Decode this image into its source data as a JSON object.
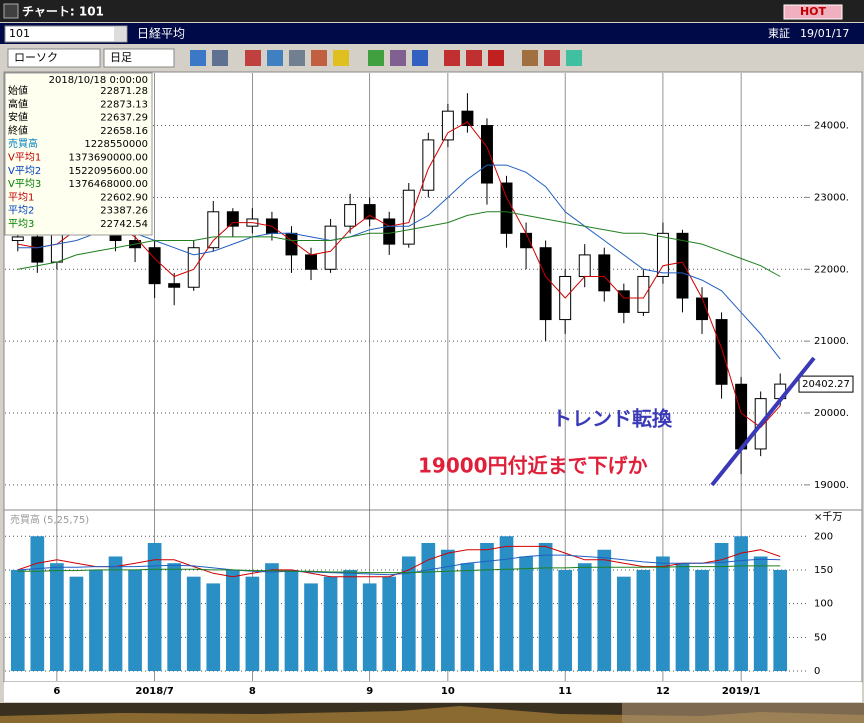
{
  "window": {
    "title": "チャート: 101",
    "hot": "HOT",
    "code": "101",
    "name": "日経平均",
    "market": "東証",
    "date": "19/01/17",
    "chart_type": "ローソク",
    "period": "日足"
  },
  "info": {
    "datetime": "2018/10/18 0:00:00",
    "rows": [
      {
        "label": "始値",
        "value": "22871.28",
        "color": "#000000"
      },
      {
        "label": "高値",
        "value": "22873.13",
        "color": "#000000"
      },
      {
        "label": "安値",
        "value": "22637.29",
        "color": "#000000"
      },
      {
        "label": "終値",
        "value": "22658.16",
        "color": "#000000"
      },
      {
        "label": "売買高",
        "value": "1228550000",
        "color": "#0080c0"
      },
      {
        "label": "V平均1",
        "value": "1373690000.00",
        "color": "#c00000"
      },
      {
        "label": "V平均2",
        "value": "1522095600.00",
        "color": "#0040c0"
      },
      {
        "label": "V平均3",
        "value": "1376468000.00",
        "color": "#008000"
      },
      {
        "label": "平均1",
        "value": "22602.90",
        "color": "#c00000"
      },
      {
        "label": "平均2",
        "value": "23387.26",
        "color": "#0040c0"
      },
      {
        "label": "平均3",
        "value": "22742.54",
        "color": "#008000"
      }
    ]
  },
  "chart_data": {
    "type": "candlestick",
    "categories": [
      null,
      null,
      "6",
      null,
      null,
      null,
      null,
      "2018/7",
      null,
      null,
      null,
      null,
      "8",
      null,
      null,
      null,
      null,
      null,
      "9",
      null,
      null,
      null,
      "10",
      null,
      null,
      null,
      null,
      null,
      "11",
      null,
      null,
      null,
      null,
      "12",
      null,
      null,
      null,
      "2019/1",
      null,
      null
    ],
    "open": [
      22400,
      22450,
      22100,
      22600,
      22750,
      22700,
      22400,
      22300,
      21800,
      21750,
      22300,
      22800,
      22600,
      22700,
      22500,
      22200,
      22000,
      22600,
      22900,
      22700,
      22350,
      23100,
      23800,
      24200,
      24000,
      23200,
      22500,
      22300,
      21300,
      21900,
      22200,
      21700,
      21400,
      21900,
      22500,
      21600,
      21300,
      20400,
      19500,
      20200
    ],
    "high": [
      22600,
      22500,
      22700,
      22900,
      22850,
      22750,
      22550,
      22400,
      21950,
      22400,
      22950,
      22850,
      22850,
      22800,
      22600,
      22300,
      22700,
      23050,
      23000,
      22800,
      23200,
      23900,
      24300,
      24450,
      24100,
      23300,
      22650,
      22400,
      22000,
      22350,
      22300,
      21800,
      22000,
      22650,
      22550,
      21750,
      21400,
      20500,
      20300,
      20550
    ],
    "low": [
      22250,
      21950,
      22000,
      22500,
      22550,
      22250,
      22100,
      21600,
      21500,
      21700,
      22250,
      22450,
      22500,
      22400,
      21950,
      21850,
      21950,
      22500,
      22600,
      22200,
      22300,
      23000,
      23700,
      23900,
      22900,
      22300,
      22000,
      21000,
      21100,
      21750,
      21550,
      21250,
      21350,
      21800,
      21400,
      21100,
      20200,
      19150,
      19400,
      20100
    ],
    "close": [
      22450,
      22100,
      22600,
      22750,
      22700,
      22400,
      22300,
      21800,
      21750,
      22300,
      22800,
      22600,
      22700,
      22500,
      22200,
      22000,
      22600,
      22900,
      22700,
      22350,
      23100,
      23800,
      24200,
      24000,
      23200,
      22500,
      22300,
      21300,
      21900,
      22200,
      21700,
      21400,
      21900,
      22500,
      21600,
      21300,
      20400,
      19500,
      20200,
      20402.27
    ],
    "up_color": "#ffffff",
    "down_color": "#000000",
    "ma": [
      {
        "color": "#d00000",
        "values": [
          22350,
          22300,
          22350,
          22550,
          22650,
          22600,
          22450,
          22150,
          21900,
          22000,
          22400,
          22650,
          22650,
          22600,
          22400,
          22200,
          22250,
          22550,
          22750,
          22600,
          22650,
          23400,
          23900,
          24050,
          23700,
          23000,
          22500,
          21900,
          21600,
          21900,
          21900,
          21600,
          21600,
          22050,
          22100,
          21600,
          20900,
          20000,
          19800,
          20100
        ]
      },
      {
        "color": "#2060c0",
        "values": [
          22300,
          22300,
          22350,
          22400,
          22500,
          22550,
          22500,
          22400,
          22300,
          22200,
          22250,
          22350,
          22450,
          22500,
          22500,
          22450,
          22400,
          22450,
          22550,
          22600,
          22600,
          22750,
          23000,
          23250,
          23450,
          23450,
          23350,
          23150,
          22800,
          22600,
          22400,
          22200,
          22000,
          21950,
          21950,
          21850,
          21700,
          21400,
          21100,
          20750
        ]
      },
      {
        "color": "#208020",
        "values": [
          22000,
          22050,
          22100,
          22200,
          22250,
          22300,
          22350,
          22400,
          22400,
          22400,
          22450,
          22450,
          22450,
          22450,
          22400,
          22400,
          22400,
          22450,
          22500,
          22500,
          22550,
          22600,
          22650,
          22750,
          22800,
          22800,
          22750,
          22700,
          22650,
          22600,
          22550,
          22500,
          22500,
          22450,
          22400,
          22350,
          22250,
          22150,
          22050,
          21900
        ]
      }
    ],
    "last_price": 20402.27,
    "ylim": [
      18720,
      24745
    ],
    "yticks": [
      {
        "value": 19000,
        "label": "19000."
      },
      {
        "value": 20000,
        "label": "20000."
      },
      {
        "value": 21000,
        "label": "21000."
      },
      {
        "value": 22000,
        "label": "22000."
      },
      {
        "value": 23000,
        "label": "23000."
      },
      {
        "value": 24000,
        "label": "24000."
      }
    ],
    "annotations": [
      {
        "text": "トレンド転換",
        "color": "#3a3ab8"
      },
      {
        "text": "19000円付近まで下げか",
        "color": "#e0203a"
      }
    ],
    "volume": {
      "label": "売買高 (5,25,75)",
      "unit": "×千万",
      "color": "#2a8fc4",
      "values": [
        150,
        200,
        160,
        140,
        150,
        170,
        150,
        190,
        160,
        140,
        130,
        150,
        140,
        160,
        150,
        130,
        140,
        150,
        130,
        140,
        170,
        190,
        180,
        160,
        190,
        200,
        170,
        190,
        150,
        160,
        180,
        140,
        150,
        170,
        160,
        150,
        190,
        200,
        170,
        150
      ],
      "ma": [
        {
          "color": "#d00000",
          "values": [
            150,
            160,
            165,
            160,
            155,
            155,
            160,
            165,
            165,
            155,
            145,
            140,
            145,
            150,
            150,
            145,
            140,
            140,
            140,
            140,
            150,
            165,
            175,
            180,
            180,
            185,
            185,
            185,
            175,
            165,
            165,
            160,
            155,
            155,
            160,
            160,
            165,
            175,
            180,
            170
          ]
        },
        {
          "color": "#2060c0",
          "values": [
            150,
            152,
            154,
            154,
            155,
            155,
            155,
            156,
            157,
            156,
            153,
            150,
            148,
            147,
            148,
            147,
            146,
            145,
            144,
            143,
            145,
            150,
            155,
            160,
            163,
            166,
            170,
            172,
            172,
            170,
            168,
            165,
            162,
            160,
            160,
            160,
            161,
            164,
            166,
            165
          ]
        },
        {
          "color": "#208020",
          "values": [
            148,
            148,
            149,
            149,
            150,
            150,
            150,
            151,
            151,
            151,
            150,
            150,
            149,
            149,
            148,
            148,
            147,
            147,
            146,
            146,
            146,
            147,
            148,
            149,
            150,
            151,
            152,
            153,
            153,
            154,
            154,
            154,
            154,
            154,
            155,
            155,
            155,
            156,
            156,
            156
          ]
        }
      ],
      "ylim": [
        0,
        236
      ],
      "yticks": [
        0,
        50,
        100,
        150,
        200
      ]
    }
  }
}
